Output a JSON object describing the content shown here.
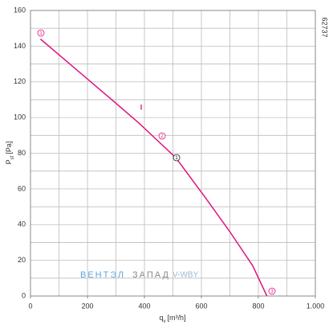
{
  "chart_data": {
    "type": "line",
    "x_label": {
      "symbol": "q",
      "sub": "v",
      "unit": "[m³/h]"
    },
    "y_label": {
      "symbol": "P",
      "sub": "sf",
      "unit": "[Pa]"
    },
    "code": "62737",
    "x": [
      35,
      175,
      300,
      380,
      440,
      510,
      610,
      700,
      780,
      830
    ],
    "series": [
      {
        "color": "#e0157f",
        "values": [
          144,
          125,
          108,
          97,
          88,
          77.5,
          56,
          36,
          17,
          0
        ]
      }
    ],
    "xlim": [
      0,
      1000
    ],
    "ylim": [
      0,
      160
    ],
    "xticks": [
      0,
      200,
      400,
      600,
      800,
      {
        "value": 1000,
        "label": "1.000"
      }
    ],
    "yticks": [
      0,
      20,
      40,
      60,
      80,
      100,
      120,
      140,
      160
    ],
    "xgrid": [
      0,
      100,
      200,
      300,
      400,
      500,
      600,
      700,
      800,
      900,
      1000
    ],
    "ygrid": [
      0,
      10,
      20,
      30,
      40,
      50,
      60,
      70,
      80,
      90,
      100,
      110,
      120,
      130,
      140,
      150,
      160
    ],
    "markers": [
      "1",
      "2",
      "1",
      "3"
    ],
    "flag": "I",
    "watermark": {
      "part1": "ВЕНТЭЛ",
      "part2": "ЗАПАД",
      "part3": "V-WBY"
    }
  }
}
